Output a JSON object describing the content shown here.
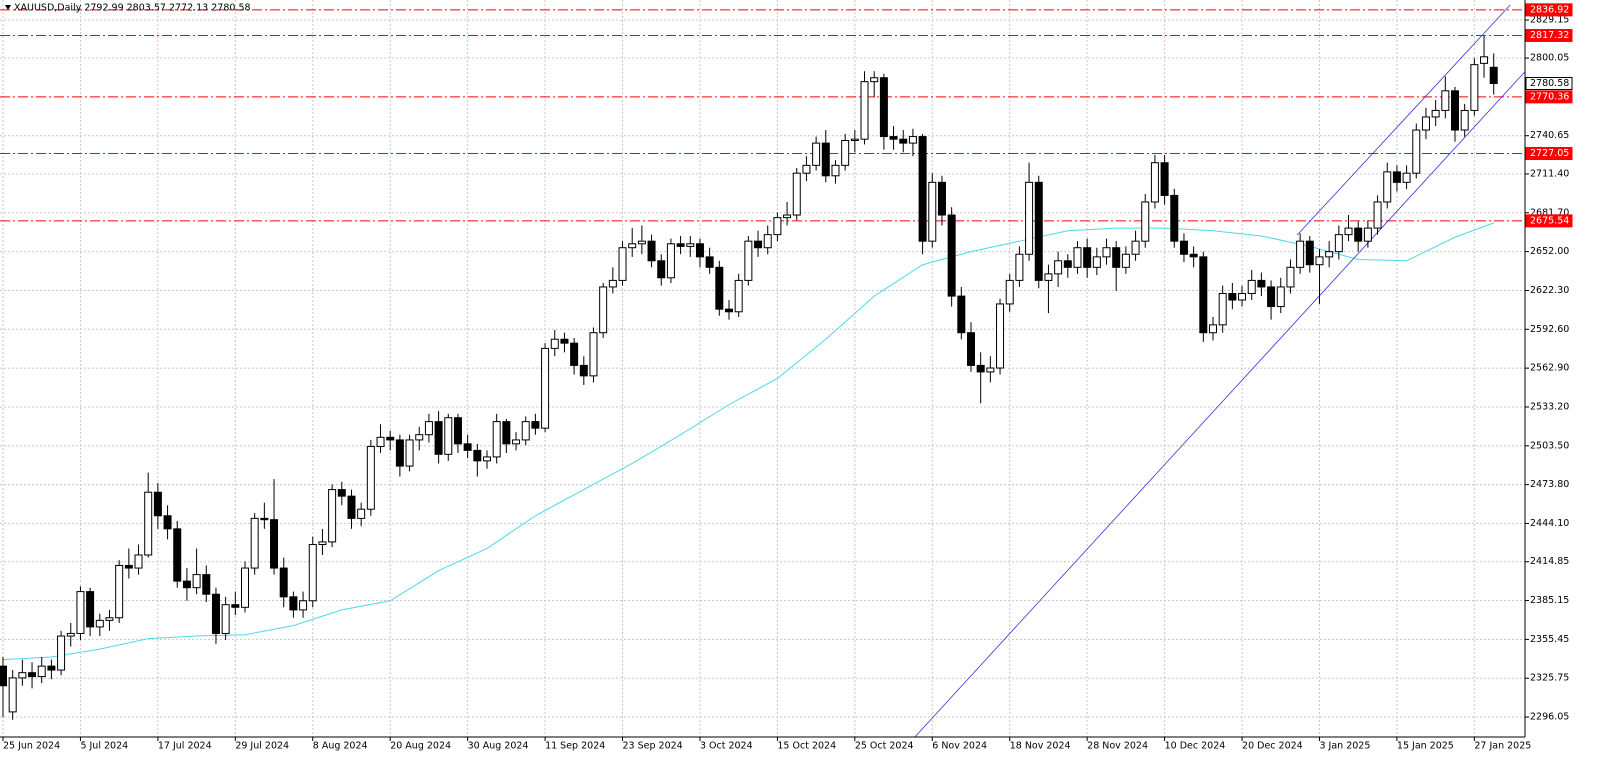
{
  "chart_data": {
    "type": "candlestick",
    "title": "XAUUSD,Daily  2792.99 2803.57 2772.13 2780.58",
    "ylim": [
      2280.8,
      2844.45
    ],
    "yticks": [
      2829.15,
      2800.05,
      2740.65,
      {
        "value": 2711.4,
        "label": "2711.40"
      },
      {
        "value": 2681.7,
        "label": "2681.70"
      },
      {
        "value": 2652,
        "label": "2652.00"
      },
      {
        "value": 2622.3,
        "label": "2622.30"
      },
      {
        "value": 2592.6,
        "label": "2592.60"
      },
      {
        "value": 2562.9,
        "label": "2562.90"
      },
      {
        "value": 2533.2,
        "label": "2533.20"
      },
      {
        "value": 2503.5,
        "label": "2503.50"
      },
      {
        "value": 2473.8,
        "label": "2473.80"
      },
      {
        "value": 2444.1,
        "label": "2444.10"
      },
      2414.85,
      2385.15,
      2355.45,
      2325.75,
      2296.05
    ],
    "xticks": [
      {
        "value": 0,
        "label": "25 Jun 2024"
      },
      {
        "value": 8,
        "label": "5 Jul 2024"
      },
      {
        "value": 16,
        "label": "17 Jul 2024"
      },
      {
        "value": 24,
        "label": "29 Jul 2024"
      },
      {
        "value": 32,
        "label": "8 Aug 2024"
      },
      {
        "value": 40,
        "label": "20 Aug 2024"
      },
      {
        "value": 48,
        "label": "30 Aug 2024"
      },
      {
        "value": 56,
        "label": "11 Sep 2024"
      },
      {
        "value": 64,
        "label": "23 Sep 2024"
      },
      {
        "value": 72,
        "label": "3 Oct 2024"
      },
      {
        "value": 80,
        "label": "15 Oct 2024"
      },
      {
        "value": 88,
        "label": "25 Oct 2024"
      },
      {
        "value": 96,
        "label": "6 Nov 2024"
      },
      {
        "value": 104,
        "label": "18 Nov 2024"
      },
      {
        "value": 112,
        "label": "28 Nov 2024"
      },
      {
        "value": 120,
        "label": "10 Dec 2024"
      },
      {
        "value": 128,
        "label": "20 Dec 2024"
      },
      {
        "value": 136,
        "label": "3 Jan 2025"
      },
      {
        "value": 144,
        "label": "15 Jan 2025"
      },
      {
        "value": 152,
        "label": "27 Jan 2025"
      }
    ],
    "grid": true,
    "bull_color": "#ffffff",
    "bear_color": "#000000",
    "levels": [
      2836.92,
      2817.32,
      2770.36,
      2727.05,
      2675.54
    ],
    "level_color": "#ff0000",
    "current_price": 2780.58,
    "ma": {
      "color": "#4dd9e6",
      "x": [
        0,
        5,
        10,
        15,
        20,
        25,
        30,
        35,
        40,
        45,
        50,
        55,
        60,
        65,
        70,
        75,
        80,
        85,
        90,
        95,
        100,
        105,
        110,
        115,
        120,
        125,
        130,
        135,
        140,
        145,
        150,
        154
      ],
      "values": [
        2340,
        2342,
        2348,
        2356,
        2358,
        2359,
        2366,
        2378,
        2385,
        2408,
        2425,
        2450,
        2470,
        2490,
        2512,
        2535,
        2555,
        2585,
        2618,
        2642,
        2652,
        2660,
        2668,
        2670,
        2670,
        2668,
        2664,
        2656,
        2646,
        2645,
        2663,
        2674
      ]
    },
    "channel": {
      "color": "#3333dd",
      "lines": [
        [
          [
            94.2,
            2280.8
          ],
          [
            157.2,
            2789.4
          ]
        ],
        [
          [
            133.7,
            2664.7
          ],
          [
            155.7,
            2840.6
          ]
        ]
      ]
    },
    "ohlc": [
      [
        2335,
        2342,
        2296,
        2320
      ],
      [
        2300,
        2332,
        2294,
        2326
      ],
      [
        2326,
        2340,
        2320,
        2330
      ],
      [
        2330,
        2338,
        2318,
        2327
      ],
      [
        2327,
        2342,
        2322,
        2335
      ],
      [
        2335,
        2340,
        2325,
        2332
      ],
      [
        2332,
        2362,
        2328,
        2358
      ],
      [
        2358,
        2368,
        2350,
        2360
      ],
      [
        2360,
        2396,
        2355,
        2392
      ],
      [
        2392,
        2395,
        2358,
        2365
      ],
      [
        2365,
        2375,
        2358,
        2370
      ],
      [
        2370,
        2378,
        2362,
        2372
      ],
      [
        2372,
        2416,
        2368,
        2412
      ],
      [
        2412,
        2425,
        2402,
        2410
      ],
      [
        2410,
        2428,
        2405,
        2420
      ],
      [
        2420,
        2483,
        2418,
        2468
      ],
      [
        2468,
        2475,
        2440,
        2450
      ],
      [
        2450,
        2458,
        2432,
        2440
      ],
      [
        2440,
        2446,
        2395,
        2400
      ],
      [
        2400,
        2410,
        2385,
        2395
      ],
      [
        2395,
        2425,
        2390,
        2405
      ],
      [
        2405,
        2412,
        2384,
        2390
      ],
      [
        2390,
        2395,
        2352,
        2360
      ],
      [
        2360,
        2388,
        2355,
        2382
      ],
      [
        2382,
        2392,
        2374,
        2380
      ],
      [
        2380,
        2415,
        2376,
        2410
      ],
      [
        2410,
        2452,
        2405,
        2448
      ],
      [
        2448,
        2460,
        2440,
        2447
      ],
      [
        2447,
        2478,
        2405,
        2410
      ],
      [
        2410,
        2418,
        2380,
        2388
      ],
      [
        2388,
        2392,
        2372,
        2378
      ],
      [
        2378,
        2392,
        2372,
        2385
      ],
      [
        2385,
        2434,
        2380,
        2428
      ],
      [
        2428,
        2440,
        2420,
        2430
      ],
      [
        2430,
        2474,
        2426,
        2470
      ],
      [
        2470,
        2476,
        2458,
        2465
      ],
      [
        2465,
        2470,
        2440,
        2448
      ],
      [
        2448,
        2460,
        2442,
        2455
      ],
      [
        2455,
        2508,
        2450,
        2503
      ],
      [
        2503,
        2520,
        2498,
        2510
      ],
      [
        2510,
        2515,
        2500,
        2508
      ],
      [
        2508,
        2512,
        2480,
        2488
      ],
      [
        2488,
        2512,
        2484,
        2508
      ],
      [
        2508,
        2518,
        2500,
        2512
      ],
      [
        2512,
        2528,
        2506,
        2522
      ],
      [
        2522,
        2530,
        2490,
        2497
      ],
      [
        2497,
        2528,
        2492,
        2525
      ],
      [
        2525,
        2528,
        2498,
        2505
      ],
      [
        2505,
        2512,
        2494,
        2500
      ],
      [
        2500,
        2505,
        2480,
        2492
      ],
      [
        2492,
        2500,
        2486,
        2495
      ],
      [
        2495,
        2528,
        2490,
        2522
      ],
      [
        2522,
        2524,
        2498,
        2505
      ],
      [
        2505,
        2514,
        2500,
        2508
      ],
      [
        2508,
        2526,
        2504,
        2522
      ],
      [
        2522,
        2528,
        2512,
        2517
      ],
      [
        2517,
        2582,
        2514,
        2578
      ],
      [
        2578,
        2592,
        2572,
        2585
      ],
      [
        2585,
        2590,
        2575,
        2582
      ],
      [
        2582,
        2586,
        2558,
        2565
      ],
      [
        2565,
        2572,
        2550,
        2557
      ],
      [
        2557,
        2594,
        2552,
        2590
      ],
      [
        2590,
        2628,
        2586,
        2625
      ],
      [
        2625,
        2640,
        2620,
        2630
      ],
      [
        2630,
        2660,
        2626,
        2655
      ],
      [
        2655,
        2670,
        2648,
        2658
      ],
      [
        2658,
        2672,
        2650,
        2660
      ],
      [
        2660,
        2665,
        2640,
        2645
      ],
      [
        2645,
        2650,
        2626,
        2632
      ],
      [
        2632,
        2662,
        2628,
        2658
      ],
      [
        2658,
        2664,
        2650,
        2656
      ],
      [
        2656,
        2664,
        2648,
        2658
      ],
      [
        2658,
        2662,
        2640,
        2648
      ],
      [
        2648,
        2655,
        2635,
        2640
      ],
      [
        2640,
        2645,
        2603,
        2608
      ],
      [
        2608,
        2615,
        2600,
        2606
      ],
      [
        2606,
        2635,
        2602,
        2630
      ],
      [
        2630,
        2664,
        2626,
        2660
      ],
      [
        2660,
        2668,
        2648,
        2655
      ],
      [
        2655,
        2672,
        2650,
        2665
      ],
      [
        2665,
        2682,
        2660,
        2678
      ],
      [
        2678,
        2690,
        2672,
        2680
      ],
      [
        2680,
        2716,
        2676,
        2712
      ],
      [
        2712,
        2725,
        2706,
        2718
      ],
      [
        2718,
        2740,
        2714,
        2735
      ],
      [
        2735,
        2745,
        2705,
        2710
      ],
      [
        2710,
        2722,
        2704,
        2718
      ],
      [
        2718,
        2742,
        2714,
        2737
      ],
      [
        2737,
        2745,
        2728,
        2738
      ],
      [
        2738,
        2790,
        2734,
        2782
      ],
      [
        2782,
        2790,
        2770,
        2785
      ],
      [
        2785,
        2788,
        2730,
        2740
      ],
      [
        2740,
        2748,
        2730,
        2738
      ],
      [
        2738,
        2745,
        2728,
        2735
      ],
      [
        2735,
        2746,
        2725,
        2740
      ],
      [
        2740,
        2742,
        2650,
        2660
      ],
      [
        2660,
        2712,
        2655,
        2705
      ],
      [
        2705,
        2710,
        2672,
        2680
      ],
      [
        2680,
        2686,
        2610,
        2618
      ],
      [
        2618,
        2625,
        2585,
        2590
      ],
      [
        2590,
        2598,
        2560,
        2565
      ],
      [
        2565,
        2575,
        2536,
        2560
      ],
      [
        2560,
        2572,
        2552,
        2563
      ],
      [
        2563,
        2616,
        2558,
        2612
      ],
      [
        2612,
        2635,
        2606,
        2630
      ],
      [
        2630,
        2656,
        2625,
        2650
      ],
      [
        2650,
        2720,
        2645,
        2705
      ],
      [
        2705,
        2710,
        2624,
        2630
      ],
      [
        2630,
        2642,
        2605,
        2635
      ],
      [
        2635,
        2652,
        2625,
        2645
      ],
      [
        2645,
        2650,
        2632,
        2640
      ],
      [
        2640,
        2660,
        2635,
        2655
      ],
      [
        2655,
        2662,
        2632,
        2640
      ],
      [
        2640,
        2655,
        2634,
        2648
      ],
      [
        2648,
        2662,
        2642,
        2655
      ],
      [
        2655,
        2660,
        2622,
        2640
      ],
      [
        2640,
        2656,
        2635,
        2650
      ],
      [
        2650,
        2668,
        2645,
        2660
      ],
      [
        2660,
        2696,
        2655,
        2690
      ],
      [
        2690,
        2726,
        2685,
        2720
      ],
      [
        2720,
        2726,
        2688,
        2695
      ],
      [
        2695,
        2700,
        2655,
        2660
      ],
      [
        2660,
        2666,
        2644,
        2650
      ],
      [
        2650,
        2656,
        2640,
        2648
      ],
      [
        2648,
        2652,
        2583,
        2590
      ],
      [
        2590,
        2602,
        2584,
        2596
      ],
      [
        2596,
        2626,
        2590,
        2620
      ],
      [
        2620,
        2628,
        2608,
        2615
      ],
      [
        2615,
        2626,
        2610,
        2620
      ],
      [
        2620,
        2638,
        2615,
        2630
      ],
      [
        2630,
        2636,
        2618,
        2625
      ],
      [
        2625,
        2630,
        2600,
        2610
      ],
      [
        2610,
        2632,
        2605,
        2625
      ],
      [
        2625,
        2646,
        2620,
        2640
      ],
      [
        2640,
        2666,
        2635,
        2660
      ],
      [
        2660,
        2664,
        2636,
        2642
      ],
      [
        2642,
        2654,
        2612,
        2648
      ],
      [
        2648,
        2660,
        2640,
        2652
      ],
      [
        2652,
        2672,
        2646,
        2665
      ],
      [
        2665,
        2680,
        2660,
        2670
      ],
      [
        2670,
        2675,
        2652,
        2660
      ],
      [
        2660,
        2676,
        2655,
        2670
      ],
      [
        2670,
        2695,
        2665,
        2690
      ],
      [
        2690,
        2720,
        2685,
        2713
      ],
      [
        2713,
        2718,
        2698,
        2705
      ],
      [
        2705,
        2718,
        2700,
        2712
      ],
      [
        2712,
        2750,
        2708,
        2745
      ],
      [
        2745,
        2762,
        2738,
        2755
      ],
      [
        2755,
        2768,
        2748,
        2760
      ],
      [
        2760,
        2786,
        2754,
        2775
      ],
      [
        2775,
        2778,
        2736,
        2745
      ],
      [
        2745,
        2765,
        2740,
        2760
      ],
      [
        2760,
        2800,
        2756,
        2795
      ],
      [
        2796,
        2817.32,
        2785,
        2801
      ],
      [
        2792.99,
        2803.57,
        2772.13,
        2780.58
      ]
    ]
  }
}
